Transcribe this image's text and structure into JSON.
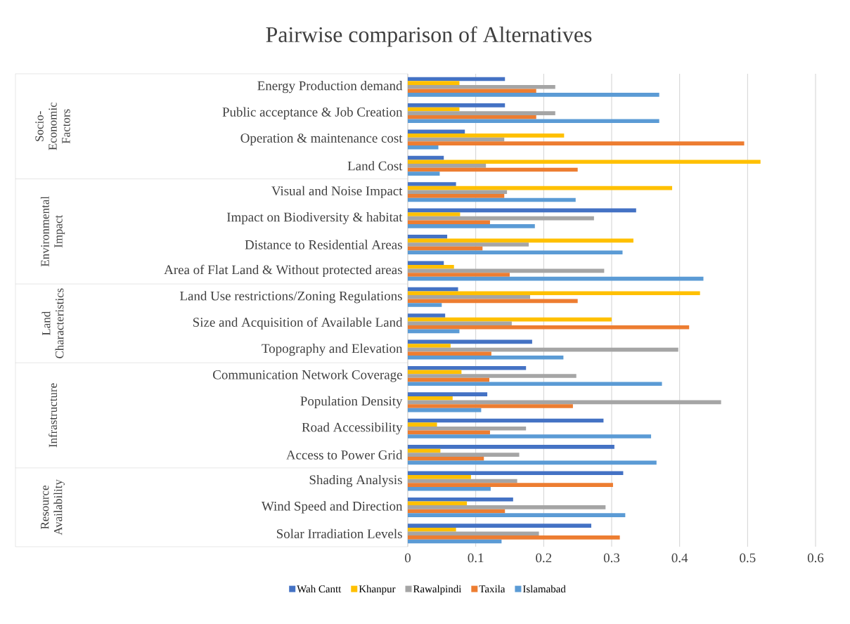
{
  "chart_data": {
    "type": "bar",
    "orientation": "horizontal",
    "title": "Pairwise comparison of Alternatives",
    "categories": [
      "Energy Production demand",
      "Public acceptance & Job Creation",
      "Operation & maintenance cost",
      "Land Cost",
      "Visual and Noise Impact",
      "Impact on Biodiversity & habitat",
      "Distance to Residential Areas",
      "Area of Flat Land & Without protected areas",
      "Land Use restrictions/Zoning Regulations",
      "Size and Acquisition of Available Land",
      "Topography and Elevation",
      "Communication Network Coverage",
      "Population Density",
      "Road Accessibility",
      "Access to Power Grid",
      "Shading Analysis",
      "Wind Speed and Direction",
      "Solar Irradiation Levels"
    ],
    "series": [
      {
        "name": "Wah Cantt",
        "color": "#4472c4",
        "values": [
          0.143,
          0.143,
          0.084,
          0.053,
          0.071,
          0.336,
          0.058,
          0.053,
          0.074,
          0.055,
          0.183,
          0.174,
          0.117,
          0.288,
          0.304,
          0.317,
          0.155,
          0.27
        ]
      },
      {
        "name": "Khanpur",
        "color": "#ffc000",
        "values": [
          0.076,
          0.076,
          0.23,
          0.519,
          0.389,
          0.077,
          0.332,
          0.068,
          0.43,
          0.3,
          0.063,
          0.079,
          0.066,
          0.043,
          0.048,
          0.093,
          0.087,
          0.071
        ]
      },
      {
        "name": "Rawalpindi",
        "color": "#a5a5a5",
        "values": [
          0.217,
          0.217,
          0.142,
          0.115,
          0.146,
          0.274,
          0.178,
          0.289,
          0.18,
          0.153,
          0.398,
          0.248,
          0.461,
          0.174,
          0.164,
          0.161,
          0.291,
          0.193
        ]
      },
      {
        "name": "Taxila",
        "color": "#ed7d31",
        "values": [
          0.189,
          0.189,
          0.495,
          0.25,
          0.142,
          0.121,
          0.11,
          0.15,
          0.25,
          0.414,
          0.123,
          0.12,
          0.243,
          0.121,
          0.112,
          0.302,
          0.143,
          0.312
        ]
      },
      {
        "name": "Islamabad",
        "color": "#5b9bd5",
        "values": [
          0.37,
          0.37,
          0.045,
          0.047,
          0.247,
          0.187,
          0.316,
          0.435,
          0.05,
          0.076,
          0.229,
          0.374,
          0.108,
          0.358,
          0.366,
          0.122,
          0.32,
          0.138
        ]
      }
    ],
    "annotations": [
      "Socio-Economic Factors",
      "Environmental Impact",
      "Land Characteristics",
      "Infrastructure",
      "Resource Availability"
    ],
    "xlim": [
      0,
      0.6
    ],
    "xticks": [
      0,
      0.1,
      0.2,
      0.3,
      0.4,
      0.5,
      0.6
    ],
    "grid": "x",
    "legend": "bottom"
  }
}
